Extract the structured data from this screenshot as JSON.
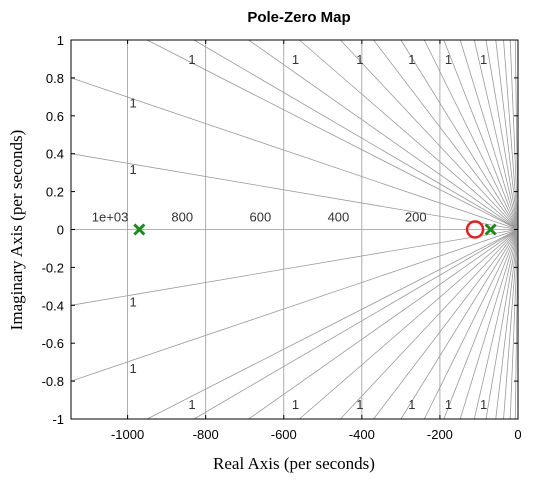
{
  "chart_data": {
    "type": "scatter",
    "title": "Pole-Zero Map",
    "xlabel": "Real Axis (per seconds)",
    "ylabel": "Imaginary Axis (per seconds)",
    "xlim": [
      -1145,
      0
    ],
    "ylim": [
      -1,
      1
    ],
    "x_ticks": [
      -1000,
      -800,
      -600,
      -400,
      -200,
      0
    ],
    "y_ticks": [
      -1,
      -0.8,
      -0.6,
      -0.4,
      -0.2,
      0,
      0.2,
      0.4,
      0.6,
      0.8,
      1
    ],
    "grid": true,
    "frequency_grid_labels": [
      "1e+03",
      "800",
      "600",
      "400",
      "200"
    ],
    "frequency_grid_values": [
      1000,
      800,
      600,
      400,
      200
    ],
    "damping_grid_label": "1",
    "poles": [
      {
        "x": -970,
        "y": 0
      },
      {
        "x": -70,
        "y": 0
      }
    ],
    "zeros": [
      {
        "x": -110,
        "y": 0
      }
    ],
    "colors": {
      "pole": "#1a8a1a",
      "zero": "#e02020",
      "grid": "#9a9a9a"
    }
  }
}
